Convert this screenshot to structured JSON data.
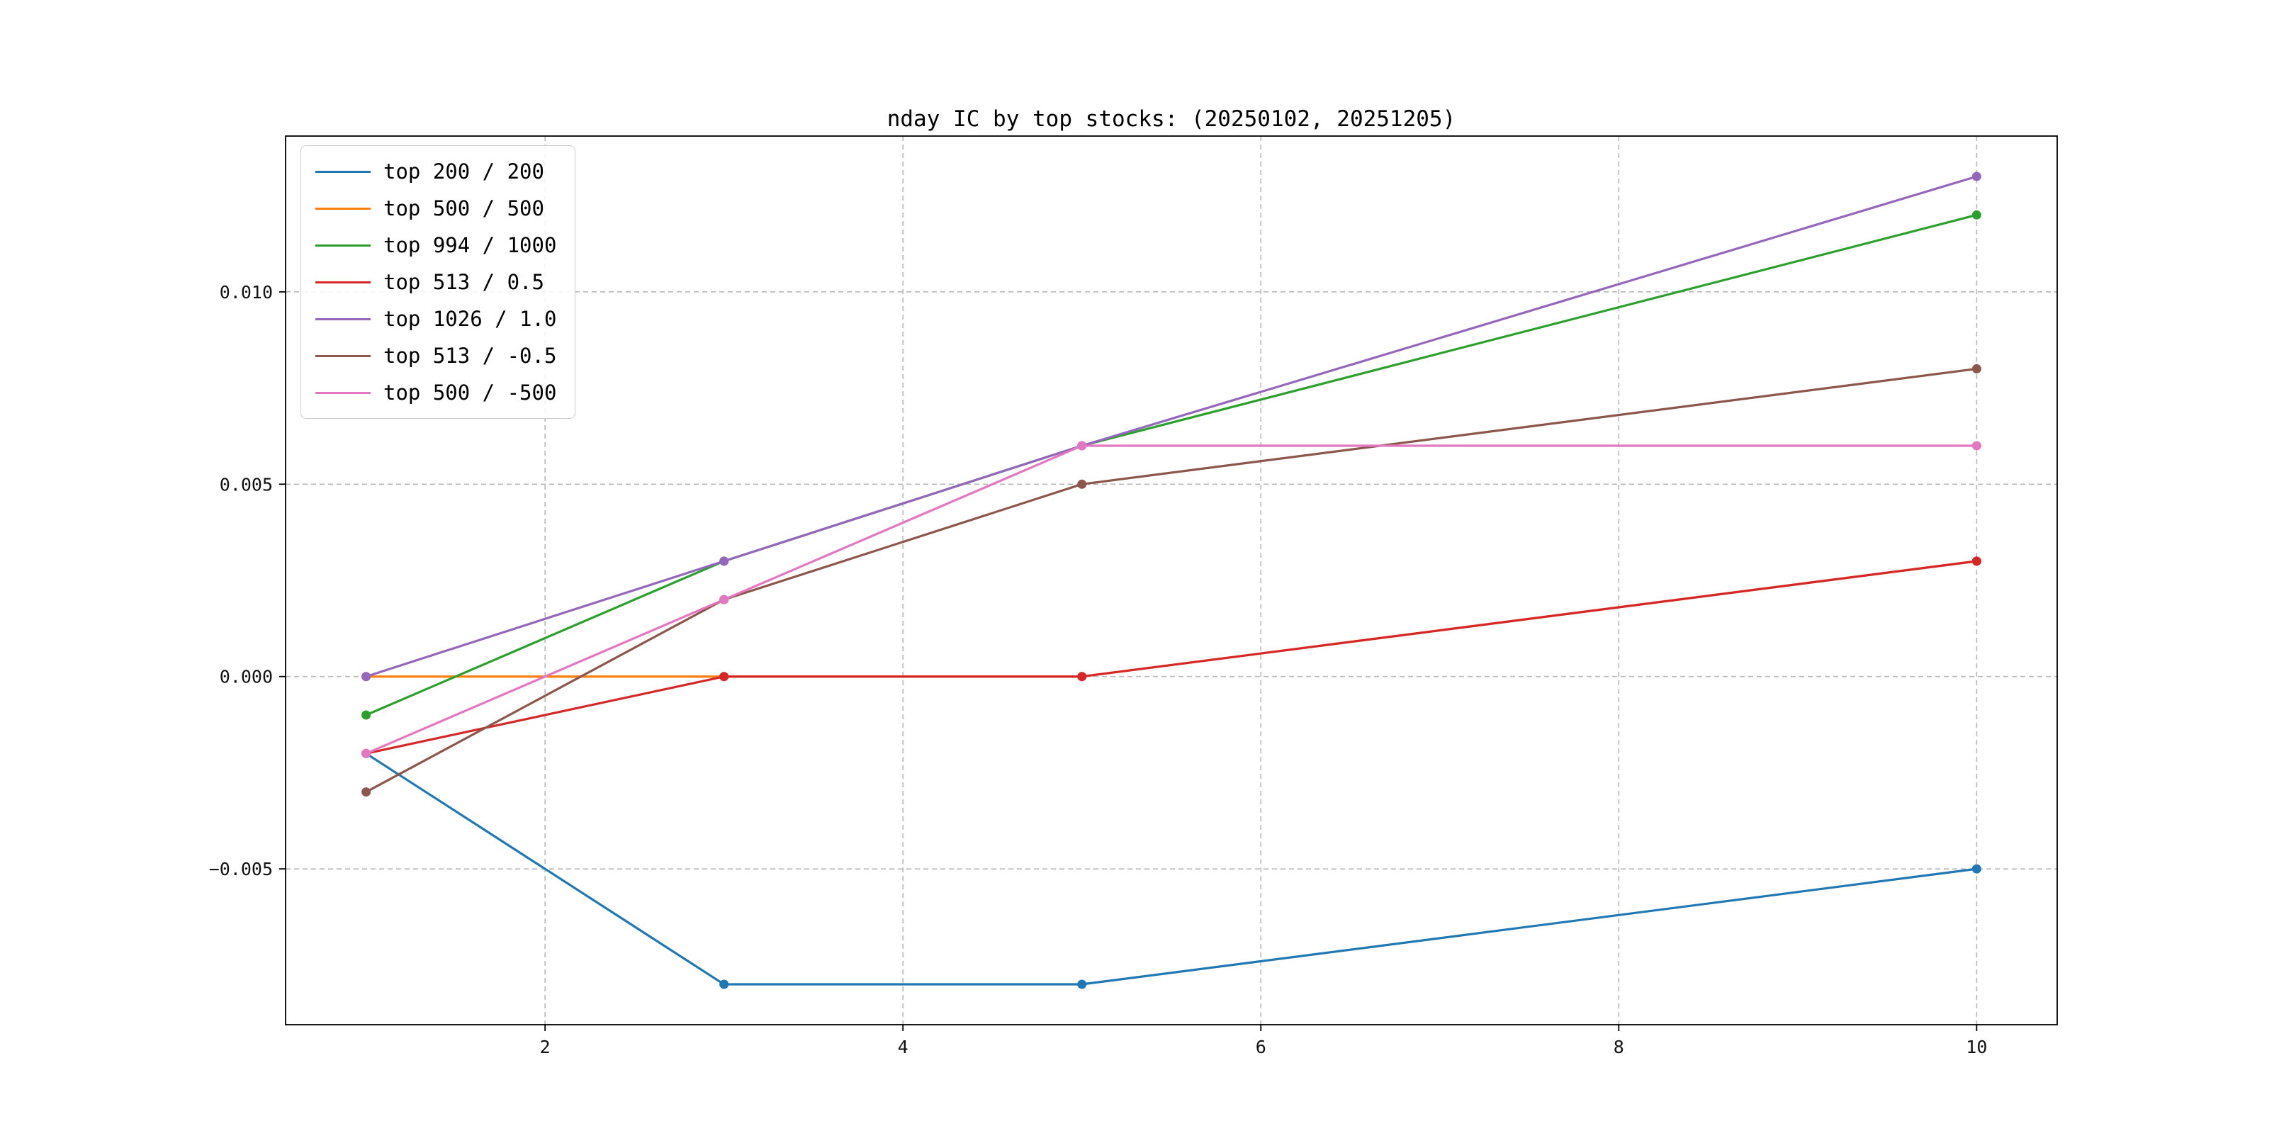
{
  "chart_data": {
    "type": "line",
    "title": "nday IC by top stocks: (20250102, 20251205)",
    "xlabel": "",
    "ylabel": "",
    "x": [
      1,
      3,
      5,
      10
    ],
    "series": [
      {
        "name": "top 200 / 200",
        "color": "#1f77b4",
        "values": [
          -0.002,
          -0.008,
          -0.008,
          -0.005
        ]
      },
      {
        "name": "top 500 / 500",
        "color": "#ff7f0e",
        "values": [
          0.0,
          0.0,
          0.0,
          0.003
        ]
      },
      {
        "name": "top 994 / 1000",
        "color": "#2ca02c",
        "values": [
          -0.001,
          0.003,
          0.006,
          0.012
        ]
      },
      {
        "name": "top 513 / 0.5",
        "color": "#d62728",
        "values": [
          -0.002,
          0.0,
          0.0,
          0.003
        ]
      },
      {
        "name": "top 1026 / 1.0",
        "color": "#9467bd",
        "values": [
          0.0,
          0.003,
          0.006,
          0.013
        ]
      },
      {
        "name": "top 513 / -0.5",
        "color": "#8c564b",
        "values": [
          -0.003,
          0.002,
          0.005,
          0.008
        ]
      },
      {
        "name": "top 500 / -500",
        "color": "#e377c2",
        "values": [
          -0.002,
          0.002,
          0.006,
          0.006
        ]
      }
    ],
    "xticks": [
      2,
      4,
      6,
      8,
      10
    ],
    "yticks": [
      -0.005,
      0.0,
      0.005,
      0.01
    ],
    "xlim": [
      0.55,
      10.45
    ],
    "ylim": [
      -0.00905,
      0.01405
    ],
    "grid": true,
    "grid_style": "dashed",
    "legend_position": "upper left",
    "marker": "o",
    "background": "#ffffff"
  }
}
